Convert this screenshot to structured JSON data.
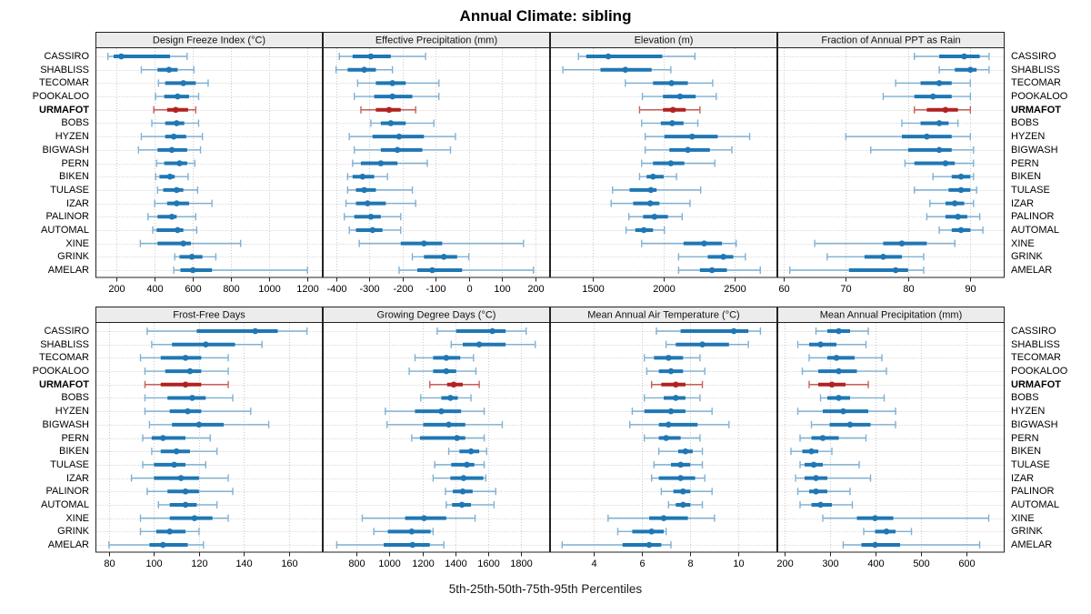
{
  "chart_data": {
    "type": "dotplot",
    "title": "Annual Climate: sibling",
    "footer": "5th-25th-50th-75th-95th Percentiles",
    "percentiles": [
      "5th",
      "25th",
      "50th",
      "75th",
      "95th"
    ],
    "legend_position": "none",
    "grid": "dotted",
    "highlight": "URMAFOT",
    "categories": [
      "CASSIRO",
      "SHABLISS",
      "TECOMAR",
      "POOKALOO",
      "URMAFOT",
      "BOBS",
      "HYZEN",
      "BIGWASH",
      "PERN",
      "BIKEN",
      "TULASE",
      "IZAR",
      "PALINOR",
      "AUTOMAL",
      "XINE",
      "GRINK",
      "AMELAR"
    ],
    "colors": {
      "series": "#1f77b4",
      "whisker": "#7fb1d3",
      "highlight": "#b22222",
      "highlight_whisker": "#c9605a",
      "strip_bg": "#ececec",
      "panel_border": "#222222",
      "grid_line": "#c9c9c9",
      "tick": "#222222"
    },
    "panels": [
      {
        "title": "Design Freeze Index (°C)",
        "grid_row": 0,
        "grid_col": 0,
        "xlim": [
          90,
          1280
        ],
        "ticks": [
          200,
          400,
          600,
          800,
          1000,
          1200
        ],
        "values": [
          [
            155,
            185,
            225,
            480,
            570
          ],
          [
            330,
            415,
            475,
            520,
            605
          ],
          [
            420,
            455,
            550,
            615,
            680
          ],
          [
            405,
            450,
            520,
            580,
            630
          ],
          [
            395,
            465,
            510,
            575,
            615
          ],
          [
            385,
            455,
            515,
            555,
            630
          ],
          [
            330,
            455,
            500,
            565,
            650
          ],
          [
            315,
            415,
            490,
            570,
            640
          ],
          [
            410,
            450,
            530,
            570,
            610
          ],
          [
            405,
            425,
            480,
            505,
            575
          ],
          [
            415,
            445,
            515,
            550,
            625
          ],
          [
            400,
            465,
            515,
            580,
            700
          ],
          [
            365,
            415,
            490,
            515,
            615
          ],
          [
            390,
            410,
            520,
            550,
            620
          ],
          [
            325,
            415,
            550,
            590,
            850
          ],
          [
            505,
            530,
            595,
            650,
            720
          ],
          [
            500,
            535,
            600,
            700,
            1200
          ]
        ]
      },
      {
        "title": "Effective Precipitation (mm)",
        "grid_row": 0,
        "grid_col": 1,
        "xlim": [
          -440,
          245
        ],
        "ticks": [
          -400,
          -300,
          -200,
          -100,
          0,
          100,
          200
        ],
        "values": [
          [
            -390,
            -350,
            -295,
            -235,
            -130
          ],
          [
            -400,
            -365,
            -315,
            -280,
            -230
          ],
          [
            -335,
            -280,
            -230,
            -190,
            -90
          ],
          [
            -345,
            -285,
            -230,
            -170,
            -90
          ],
          [
            -325,
            -280,
            -240,
            -205,
            -160
          ],
          [
            -295,
            -265,
            -235,
            -190,
            -105
          ],
          [
            -360,
            -290,
            -210,
            -135,
            -40
          ],
          [
            -345,
            -265,
            -215,
            -140,
            -55
          ],
          [
            -350,
            -325,
            -265,
            -215,
            -125
          ],
          [
            -365,
            -350,
            -320,
            -285,
            -245
          ],
          [
            -365,
            -340,
            -315,
            -280,
            -170
          ],
          [
            -370,
            -340,
            -305,
            -250,
            -160
          ],
          [
            -375,
            -345,
            -295,
            -265,
            -205
          ],
          [
            -360,
            -340,
            -290,
            -260,
            -205
          ],
          [
            -330,
            -205,
            -135,
            -80,
            165
          ],
          [
            -170,
            -135,
            -75,
            -35,
            0
          ],
          [
            -210,
            -155,
            -110,
            -20,
            195
          ]
        ]
      },
      {
        "title": "Elevation (m)",
        "grid_row": 0,
        "grid_col": 2,
        "xlim": [
          1200,
          2800
        ],
        "ticks": [
          1500,
          2000,
          2500
        ],
        "values": [
          [
            1400,
            1455,
            1610,
            1990,
            2220
          ],
          [
            1290,
            1555,
            1730,
            1915,
            2050
          ],
          [
            1730,
            1925,
            2055,
            2170,
            2345
          ],
          [
            1850,
            1995,
            2115,
            2225,
            2370
          ],
          [
            1830,
            1995,
            2065,
            2155,
            2255
          ],
          [
            1845,
            1980,
            2060,
            2140,
            2240
          ],
          [
            1870,
            2005,
            2200,
            2380,
            2605
          ],
          [
            1870,
            2040,
            2170,
            2325,
            2480
          ],
          [
            1845,
            1925,
            2050,
            2145,
            2360
          ],
          [
            1830,
            1880,
            1925,
            2000,
            2090
          ],
          [
            1640,
            1760,
            1910,
            1950,
            2260
          ],
          [
            1630,
            1785,
            1905,
            1970,
            2185
          ],
          [
            1755,
            1855,
            1935,
            2030,
            2130
          ],
          [
            1735,
            1800,
            1860,
            1925,
            2005
          ],
          [
            1845,
            2140,
            2285,
            2410,
            2510
          ],
          [
            2105,
            2310,
            2420,
            2490,
            2575
          ],
          [
            2105,
            2255,
            2340,
            2445,
            2680
          ]
        ]
      },
      {
        "title": "Fraction of Annual PPT as Rain",
        "grid_row": 0,
        "grid_col": 3,
        "xlim": [
          59,
          95.5
        ],
        "ticks": [
          60,
          70,
          80,
          90
        ],
        "values": [
          [
            81,
            85,
            89,
            91.5,
            93
          ],
          [
            85,
            87.5,
            90,
            91,
            93
          ],
          [
            78,
            82,
            85,
            87,
            90
          ],
          [
            76,
            81,
            84,
            87,
            90
          ],
          [
            81,
            83,
            86,
            88,
            90
          ],
          [
            79,
            82,
            85,
            86.5,
            88
          ],
          [
            70,
            79,
            83,
            87,
            90
          ],
          [
            74,
            80,
            85,
            87,
            90.5
          ],
          [
            79.5,
            81,
            86,
            87.5,
            90.5
          ],
          [
            84,
            87,
            88.5,
            90,
            90.5
          ],
          [
            81,
            86.5,
            88.5,
            90,
            91
          ],
          [
            83.5,
            86,
            87.5,
            89,
            90.5
          ],
          [
            83,
            86,
            88,
            89.5,
            91.5
          ],
          [
            85,
            87,
            88.5,
            90,
            92
          ],
          [
            65,
            76,
            79,
            83,
            87.5
          ],
          [
            67,
            73,
            76,
            79,
            82.5
          ],
          [
            61,
            70.5,
            78,
            80,
            82.5
          ]
        ]
      },
      {
        "title": "Frost-Free Days",
        "grid_row": 1,
        "grid_col": 0,
        "xlim": [
          74,
          175
        ],
        "ticks": [
          80,
          100,
          120,
          140,
          160
        ],
        "values": [
          [
            97,
            119,
            145,
            155,
            168
          ],
          [
            99,
            108,
            123,
            136,
            148
          ],
          [
            94,
            103,
            114,
            121,
            133
          ],
          [
            96,
            105,
            116,
            121,
            133
          ],
          [
            96,
            103,
            114,
            121,
            133
          ],
          [
            96,
            106,
            117,
            123,
            135
          ],
          [
            96,
            107,
            115,
            121,
            143
          ],
          [
            98,
            108,
            120,
            131,
            151
          ],
          [
            95,
            99,
            104,
            114,
            125
          ],
          [
            99,
            103,
            110,
            116,
            128
          ],
          [
            95,
            100,
            109,
            114,
            123
          ],
          [
            90,
            100,
            112,
            120,
            133
          ],
          [
            97,
            106,
            114,
            120,
            135
          ],
          [
            102,
            107,
            114,
            119,
            128
          ],
          [
            94,
            107,
            118,
            126,
            133
          ],
          [
            94,
            101,
            107,
            114,
            120
          ],
          [
            80,
            98,
            104,
            115,
            122
          ]
        ]
      },
      {
        "title": "Growing Degree Days (°C)",
        "grid_row": 1,
        "grid_col": 1,
        "xlim": [
          595,
          1975
        ],
        "ticks": [
          800,
          1000,
          1200,
          1400,
          1600,
          1800
        ],
        "values": [
          [
            1290,
            1405,
            1625,
            1705,
            1830
          ],
          [
            1375,
            1445,
            1545,
            1705,
            1885
          ],
          [
            1155,
            1265,
            1345,
            1430,
            1510
          ],
          [
            1120,
            1265,
            1345,
            1405,
            1525
          ],
          [
            1245,
            1350,
            1390,
            1445,
            1545
          ],
          [
            1190,
            1315,
            1370,
            1415,
            1495
          ],
          [
            975,
            1155,
            1315,
            1435,
            1575
          ],
          [
            985,
            1205,
            1360,
            1460,
            1685
          ],
          [
            1135,
            1185,
            1410,
            1460,
            1575
          ],
          [
            1360,
            1425,
            1495,
            1545,
            1590
          ],
          [
            1275,
            1375,
            1470,
            1515,
            1575
          ],
          [
            1265,
            1370,
            1450,
            1570,
            1585
          ],
          [
            1340,
            1385,
            1445,
            1505,
            1645
          ],
          [
            1345,
            1380,
            1440,
            1495,
            1635
          ],
          [
            835,
            1095,
            1210,
            1345,
            1520
          ],
          [
            905,
            990,
            1135,
            1250,
            1265
          ],
          [
            680,
            965,
            1140,
            1245,
            1330
          ]
        ]
      },
      {
        "title": "Mean Annual Air Temperature (°C)",
        "grid_row": 1,
        "grid_col": 2,
        "xlim": [
          2.2,
          11.6
        ],
        "ticks": [
          4,
          6,
          8,
          10
        ],
        "values": [
          [
            6.6,
            7.6,
            9.8,
            10.4,
            10.9
          ],
          [
            7.0,
            7.4,
            8.5,
            9.6,
            10.4
          ],
          [
            6.1,
            6.5,
            7.1,
            7.7,
            8.4
          ],
          [
            6.2,
            6.7,
            7.2,
            7.7,
            8.6
          ],
          [
            6.4,
            6.8,
            7.4,
            7.8,
            8.5
          ],
          [
            6.1,
            6.9,
            7.4,
            7.8,
            8.4
          ],
          [
            5.6,
            6.1,
            7.2,
            7.8,
            8.9
          ],
          [
            5.5,
            6.7,
            7.1,
            8.3,
            9.6
          ],
          [
            6.1,
            6.7,
            7.0,
            7.6,
            8.4
          ],
          [
            6.7,
            7.5,
            7.8,
            8.1,
            8.5
          ],
          [
            6.5,
            7.2,
            7.6,
            8.0,
            8.5
          ],
          [
            6.4,
            6.7,
            7.6,
            8.2,
            8.6
          ],
          [
            6.8,
            7.3,
            7.7,
            8.0,
            8.9
          ],
          [
            7.1,
            7.4,
            7.7,
            8.0,
            8.5
          ],
          [
            4.6,
            6.3,
            6.9,
            7.9,
            9.0
          ],
          [
            5.0,
            5.6,
            6.4,
            6.9,
            7.0
          ],
          [
            2.7,
            5.2,
            6.3,
            6.8,
            7.2
          ]
        ]
      },
      {
        "title": "Mean Annual Precipitation (mm)",
        "grid_row": 1,
        "grid_col": 3,
        "xlim": [
          185,
          685
        ],
        "ticks": [
          200,
          300,
          400,
          500,
          600
        ],
        "values": [
          [
            270,
            295,
            320,
            345,
            385
          ],
          [
            230,
            255,
            280,
            315,
            380
          ],
          [
            255,
            295,
            315,
            355,
            415
          ],
          [
            240,
            275,
            320,
            360,
            425
          ],
          [
            255,
            275,
            305,
            335,
            385
          ],
          [
            280,
            295,
            320,
            345,
            420
          ],
          [
            230,
            285,
            330,
            385,
            445
          ],
          [
            260,
            300,
            345,
            390,
            445
          ],
          [
            235,
            260,
            285,
            320,
            380
          ],
          [
            215,
            240,
            260,
            275,
            305
          ],
          [
            235,
            245,
            265,
            285,
            365
          ],
          [
            225,
            245,
            270,
            295,
            390
          ],
          [
            230,
            255,
            270,
            295,
            345
          ],
          [
            235,
            260,
            280,
            305,
            350
          ],
          [
            285,
            360,
            400,
            440,
            650
          ],
          [
            375,
            400,
            425,
            445,
            480
          ],
          [
            330,
            370,
            400,
            455,
            630
          ]
        ]
      }
    ]
  }
}
